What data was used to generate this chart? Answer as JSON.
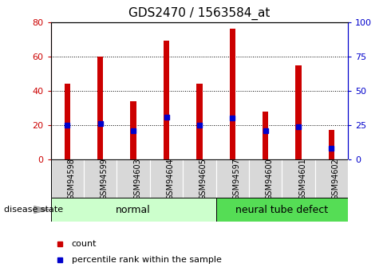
{
  "title": "GDS2470 / 1563584_at",
  "samples": [
    "GSM94598",
    "GSM94599",
    "GSM94603",
    "GSM94604",
    "GSM94605",
    "GSM94597",
    "GSM94600",
    "GSM94601",
    "GSM94602"
  ],
  "counts": [
    44,
    60,
    34,
    69,
    44,
    76,
    28,
    55,
    17
  ],
  "percentiles": [
    25,
    26,
    21,
    31,
    25,
    30,
    21,
    24,
    8
  ],
  "groups": [
    {
      "label": "normal",
      "start": 0,
      "end": 5,
      "color": "#ccffcc"
    },
    {
      "label": "neural tube defect",
      "start": 5,
      "end": 9,
      "color": "#55dd55"
    }
  ],
  "bar_color": "#cc0000",
  "pct_color": "#0000cc",
  "bar_width": 0.18,
  "ylim_left": [
    0,
    80
  ],
  "ylim_right": [
    0,
    100
  ],
  "yticks_left": [
    0,
    20,
    40,
    60,
    80
  ],
  "yticks_right": [
    0,
    25,
    50,
    75,
    100
  ],
  "tick_label_color_left": "#cc0000",
  "tick_label_color_right": "#0000cc",
  "grid_color": "black",
  "legend_count_label": "count",
  "legend_pct_label": "percentile rank within the sample",
  "disease_state_label": "disease state",
  "group_label_fontsize": 9,
  "title_fontsize": 11,
  "xtick_label_fontsize": 7,
  "ytick_label_fontsize": 8
}
